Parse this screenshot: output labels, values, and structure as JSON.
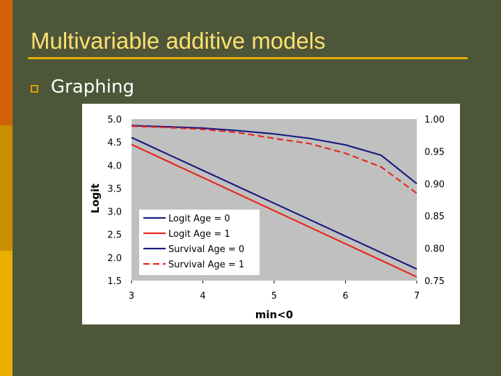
{
  "slide": {
    "title": "Multivariable additive models",
    "bullet": "Graphing"
  },
  "colors": {
    "background": "#4e5639",
    "title": "#ffe070",
    "plot_area": "#c0c0c0",
    "logit_age0": "#1a1a80",
    "logit_age1": "#e8261c",
    "survival_age0": "#1a1a80",
    "survival_age1": "#e8261c"
  },
  "chart_data": {
    "type": "line",
    "xlabel": "min<0",
    "ylabel": "Logit",
    "xlim": [
      3,
      7
    ],
    "ylim": [
      1.5,
      5.0
    ],
    "y2lim": [
      0.75,
      1.0
    ],
    "x_ticks": [
      "3",
      "4",
      "5",
      "6",
      "7"
    ],
    "y_ticks": [
      "1.5",
      "2.0",
      "2.5",
      "3.0",
      "3.5",
      "4.0",
      "4.5",
      "5.0"
    ],
    "y2_ticks": [
      "0.75",
      "0.80",
      "0.85",
      "0.90",
      "0.95",
      "1.00"
    ],
    "grid": false,
    "legend_position": "bottom-left",
    "series": [
      {
        "name": "Logit Age = 0",
        "axis": "left",
        "style": "solid",
        "color": "#1a1a80",
        "x": [
          3,
          7
        ],
        "y": [
          4.6,
          1.75
        ]
      },
      {
        "name": "Logit Age = 1",
        "axis": "left",
        "style": "solid",
        "color": "#e8261c",
        "x": [
          3,
          7
        ],
        "y": [
          4.45,
          1.58
        ]
      },
      {
        "name": "Survival Age = 0",
        "axis": "right",
        "style": "solid",
        "color": "#1a1a80",
        "x": [
          3,
          3.5,
          4,
          4.5,
          5,
          5.5,
          6,
          6.5,
          7
        ],
        "y": [
          0.99,
          0.988,
          0.986,
          0.982,
          0.977,
          0.97,
          0.96,
          0.944,
          0.9
        ]
      },
      {
        "name": "Survival Age = 1",
        "axis": "right",
        "style": "dashed",
        "color": "#e8261c",
        "x": [
          3,
          3.5,
          4,
          4.5,
          5,
          5.5,
          6,
          6.5,
          7
        ],
        "y": [
          0.989,
          0.987,
          0.984,
          0.979,
          0.97,
          0.962,
          0.947,
          0.926,
          0.885
        ]
      }
    ]
  }
}
